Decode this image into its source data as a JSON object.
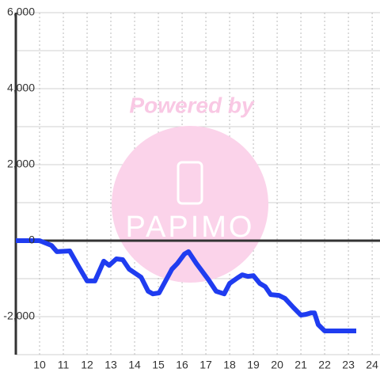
{
  "chart_data": {
    "type": "line",
    "x": [
      9,
      10,
      10.5,
      10.73,
      11.27,
      11.67,
      12,
      12.33,
      12.7,
      12.93,
      13.23,
      13.5,
      13.77,
      14.27,
      14.57,
      14.77,
      15.03,
      15.57,
      15.8,
      16.1,
      16.27,
      16.6,
      17.1,
      17.43,
      17.77,
      18,
      18.33,
      18.53,
      18.77,
      19,
      19.27,
      19.5,
      19.73,
      20.07,
      20.33,
      20.67,
      21,
      21.2,
      21.43,
      21.57,
      21.73,
      22,
      23.33
    ],
    "values": [
      0,
      0,
      -125,
      -290,
      -270,
      -710,
      -1060,
      -1060,
      -540,
      -650,
      -480,
      -500,
      -750,
      -960,
      -1330,
      -1400,
      -1375,
      -750,
      -600,
      -350,
      -290,
      -600,
      -1020,
      -1330,
      -1400,
      -1125,
      -980,
      -900,
      -940,
      -920,
      -1125,
      -1210,
      -1420,
      -1440,
      -1520,
      -1750,
      -1960,
      -1940,
      -1900,
      -1900,
      -2210,
      -2375,
      -2375
    ],
    "color": "#1f3cf0",
    "xlim": [
      9,
      24.33
    ],
    "xticks": [
      10,
      11,
      12,
      13,
      14,
      15,
      16,
      17,
      18,
      19,
      20,
      21,
      22,
      23,
      24
    ],
    "ylim": [
      -3000,
      6000
    ],
    "yticks": [
      {
        "value": -2000,
        "label": "-2,000"
      },
      0,
      {
        "value": 2000,
        "label": "2,000"
      },
      {
        "value": 4000,
        "label": "4,000"
      },
      {
        "value": 6000,
        "label": "6,000"
      }
    ],
    "yminor_ticks": [
      -3000,
      -1000,
      1000,
      3000,
      5000
    ],
    "grid": true,
    "watermark": {
      "caption": "Powered by",
      "brand": "PAPIMO"
    }
  }
}
